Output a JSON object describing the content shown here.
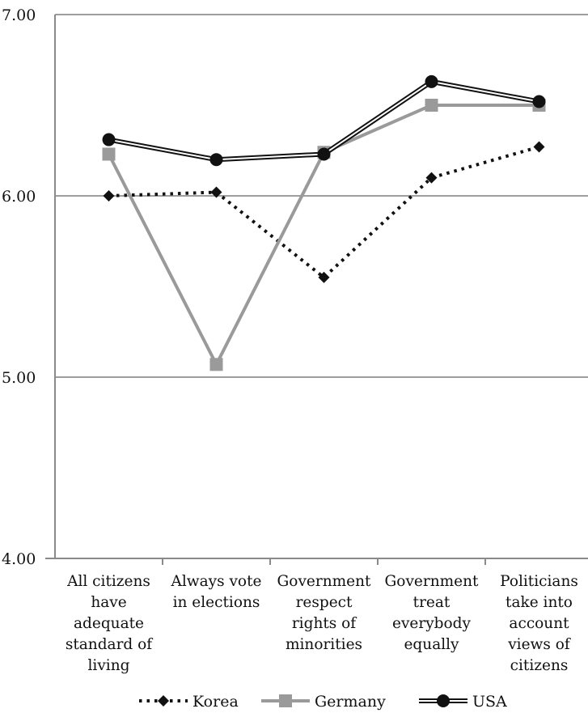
{
  "chart_data": {
    "type": "line",
    "title": "",
    "xlabel": "",
    "ylabel": "",
    "ylim": [
      4.0,
      7.0
    ],
    "yticks": [
      "4.00",
      "5.00",
      "6.00",
      "7.00"
    ],
    "categories": [
      [
        "All citizens",
        "have",
        "adequate",
        "standard of",
        "living"
      ],
      [
        "Always vote",
        "in elections"
      ],
      [
        "Government",
        "respect",
        "rights of",
        "minorities"
      ],
      [
        "Government",
        "treat",
        "everybody",
        "equally"
      ],
      [
        "Politicians",
        "take into",
        "account",
        "views of",
        "citizens"
      ]
    ],
    "series": [
      {
        "name": "Korea",
        "values": [
          6.0,
          6.02,
          5.55,
          6.1,
          6.27
        ],
        "color": "#111111",
        "style": "dotted",
        "marker": "diamond"
      },
      {
        "name": "Germany",
        "values": [
          6.23,
          5.07,
          6.24,
          6.5,
          6.5
        ],
        "color": "#9a9a9a",
        "style": "solid",
        "marker": "square"
      },
      {
        "name": "USA",
        "values": [
          6.31,
          6.2,
          6.23,
          6.63,
          6.52
        ],
        "color": "#111111",
        "style": "double",
        "marker": "circle"
      }
    ],
    "grid": true,
    "legend_position": "bottom"
  }
}
